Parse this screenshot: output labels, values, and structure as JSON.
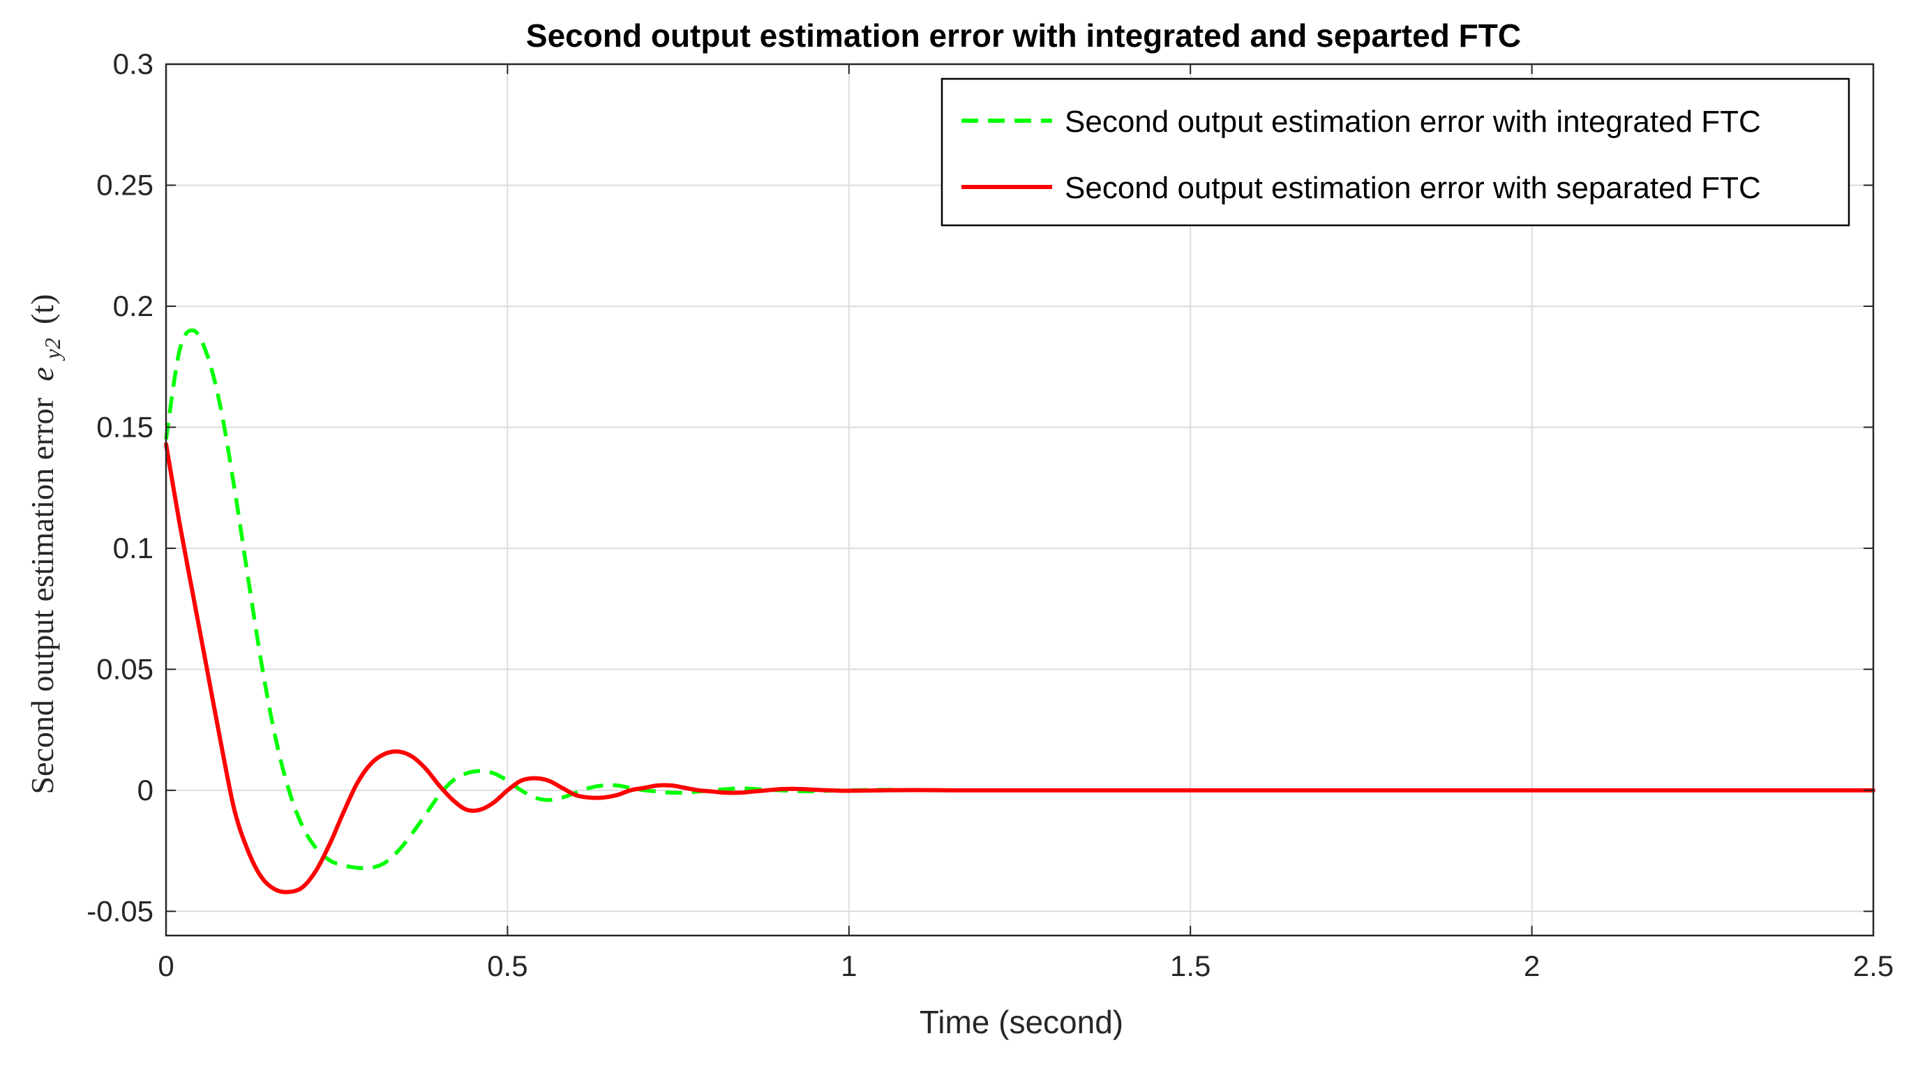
{
  "chart_data": {
    "type": "line",
    "title": "Second output estimation error with integrated and separted FTC",
    "xlabel": "Time (second)",
    "ylabel": "Second output estimation error e_{y2}(t)",
    "ylabel_parts": {
      "text": "Second output estimation error",
      "symbol": "e",
      "subscript": "y2",
      "argument": "(t)"
    },
    "xlim": [
      0,
      2.5
    ],
    "ylim": [
      -0.06,
      0.3
    ],
    "x_ticks": [
      0,
      0.5,
      1,
      1.5,
      2,
      2.5
    ],
    "x_tick_labels": [
      "0",
      "0.5",
      "1",
      "1.5",
      "2",
      "2.5"
    ],
    "y_ticks": [
      -0.05,
      0,
      0.05,
      0.1,
      0.15,
      0.2,
      0.25,
      0.3
    ],
    "y_tick_labels": [
      "-0.05",
      "0",
      "0.05",
      "0.1",
      "0.15",
      "0.2",
      "0.25",
      "0.3"
    ],
    "grid": true,
    "legend_position": "top-right",
    "series": [
      {
        "name": "Second output estimation error with integrated FTC",
        "color": "#00ff00",
        "style": "dashed",
        "x": [
          0,
          0.02,
          0.04,
          0.06,
          0.08,
          0.1,
          0.12,
          0.14,
          0.16,
          0.18,
          0.2,
          0.22,
          0.24,
          0.26,
          0.28,
          0.3,
          0.32,
          0.34,
          0.36,
          0.38,
          0.4,
          0.42,
          0.44,
          0.46,
          0.48,
          0.5,
          0.52,
          0.54,
          0.56,
          0.58,
          0.6,
          0.62,
          0.64,
          0.66,
          0.68,
          0.7,
          0.72,
          0.74,
          0.76,
          0.78,
          0.8,
          0.82,
          0.84,
          0.86,
          0.88,
          0.9,
          0.92,
          0.94,
          0.96,
          0.98,
          1.0,
          1.05,
          1.1,
          1.15,
          1.2,
          1.3,
          1.4,
          1.5,
          1.75,
          2.0,
          2.25,
          2.5
        ],
        "y": [
          0.145,
          0.182,
          0.19,
          0.18,
          0.158,
          0.125,
          0.088,
          0.052,
          0.022,
          0.0,
          -0.015,
          -0.024,
          -0.029,
          -0.031,
          -0.032,
          -0.032,
          -0.03,
          -0.025,
          -0.018,
          -0.01,
          -0.002,
          0.004,
          0.007,
          0.008,
          0.007,
          0.004,
          0.0,
          -0.003,
          -0.004,
          -0.003,
          -0.001,
          0.001,
          0.002,
          0.002,
          0.001,
          0.0,
          -0.0005,
          -0.001,
          -0.001,
          -0.0005,
          0.0,
          0.0005,
          0.0008,
          0.0006,
          0.0002,
          0.0,
          -0.0003,
          -0.0004,
          -0.0003,
          -0.0001,
          0.0,
          0.0002,
          0.0001,
          0.0,
          0.0,
          0.0,
          0.0,
          0.0,
          0.0,
          0.0,
          0.0,
          0.0
        ]
      },
      {
        "name": "Second output estimation error with separated FTC",
        "color": "#ff0000",
        "style": "solid",
        "x": [
          0,
          0.02,
          0.04,
          0.06,
          0.08,
          0.1,
          0.12,
          0.14,
          0.16,
          0.18,
          0.2,
          0.22,
          0.24,
          0.26,
          0.28,
          0.3,
          0.32,
          0.34,
          0.36,
          0.38,
          0.4,
          0.42,
          0.44,
          0.46,
          0.48,
          0.5,
          0.52,
          0.54,
          0.56,
          0.58,
          0.6,
          0.62,
          0.64,
          0.66,
          0.68,
          0.7,
          0.72,
          0.74,
          0.76,
          0.78,
          0.8,
          0.82,
          0.84,
          0.86,
          0.88,
          0.9,
          0.92,
          0.94,
          0.96,
          0.98,
          1.0,
          1.05,
          1.1,
          1.15,
          1.2,
          1.3,
          1.4,
          1.5,
          1.75,
          2.0,
          2.25,
          2.5
        ],
        "y": [
          0.143,
          0.11,
          0.08,
          0.05,
          0.02,
          -0.008,
          -0.025,
          -0.036,
          -0.041,
          -0.042,
          -0.04,
          -0.033,
          -0.022,
          -0.009,
          0.003,
          0.011,
          0.015,
          0.016,
          0.014,
          0.009,
          0.002,
          -0.004,
          -0.008,
          -0.008,
          -0.005,
          0.0,
          0.004,
          0.005,
          0.004,
          0.001,
          -0.002,
          -0.003,
          -0.003,
          -0.002,
          0.0,
          0.001,
          0.002,
          0.002,
          0.001,
          0.0,
          -0.0005,
          -0.001,
          -0.001,
          -0.0005,
          0.0,
          0.0005,
          0.0006,
          0.0004,
          0.0001,
          -0.0001,
          -0.0002,
          0.0,
          0.0001,
          0.0,
          0.0,
          0.0,
          0.0,
          0.0,
          0.0,
          0.0,
          0.0,
          0.0
        ]
      }
    ]
  }
}
